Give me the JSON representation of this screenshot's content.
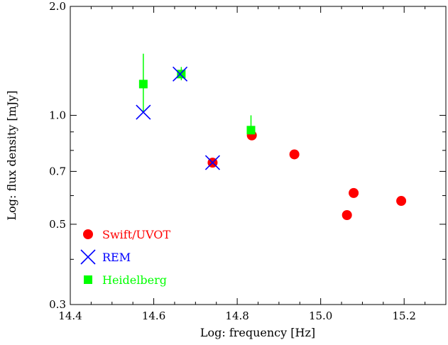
{
  "chart_data": {
    "type": "scatter",
    "title": "",
    "xlabel": "Log: frequency [Hz]",
    "ylabel": "Log: flux density [mJy]",
    "xlim": [
      14.4,
      15.3
    ],
    "ylim": [
      0.3,
      2.0
    ],
    "yscale": "log",
    "grid": false,
    "legend_position": "bottom-left",
    "x_ticks": [
      {
        "value": 14.4,
        "label": "14.4"
      },
      {
        "value": 14.6,
        "label": "14.6"
      },
      {
        "value": 14.8,
        "label": "14.8"
      },
      {
        "value": 15.0,
        "label": "15.0"
      },
      {
        "value": 15.2,
        "label": "15.2"
      }
    ],
    "y_ticks": [
      {
        "value": 0.3,
        "label": "0.3"
      },
      {
        "value": 0.5,
        "label": "0.5"
      },
      {
        "value": 0.7,
        "label": "0.7"
      },
      {
        "value": 1.0,
        "label": "1.0"
      },
      {
        "value": 2.0,
        "label": "2.0"
      }
    ],
    "series": [
      {
        "name": "Swift/UVOT",
        "marker": "circle",
        "color": "#ff0000",
        "points": [
          {
            "x": 14.741,
            "y": 0.74
          },
          {
            "x": 14.835,
            "y": 0.88
          },
          {
            "x": 14.937,
            "y": 0.78
          },
          {
            "x": 15.063,
            "y": 0.53
          },
          {
            "x": 15.079,
            "y": 0.61
          },
          {
            "x": 15.193,
            "y": 0.58
          }
        ]
      },
      {
        "name": "REM",
        "marker": "x",
        "color": "#0000ff",
        "points": [
          {
            "x": 14.575,
            "y": 1.02
          },
          {
            "x": 14.663,
            "y": 1.3
          },
          {
            "x": 14.741,
            "y": 0.74
          }
        ]
      },
      {
        "name": "Heidelberg",
        "marker": "square",
        "color": "#00ff00",
        "points": [
          {
            "x": 14.575,
            "y": 1.22,
            "yerr_low": 1.02,
            "yerr_high": 1.48
          },
          {
            "x": 14.666,
            "y": 1.3,
            "yerr_low": 1.25,
            "yerr_high": 1.36
          },
          {
            "x": 14.833,
            "y": 0.91,
            "yerr_low": 0.86,
            "yerr_high": 1.0
          }
        ]
      }
    ]
  }
}
